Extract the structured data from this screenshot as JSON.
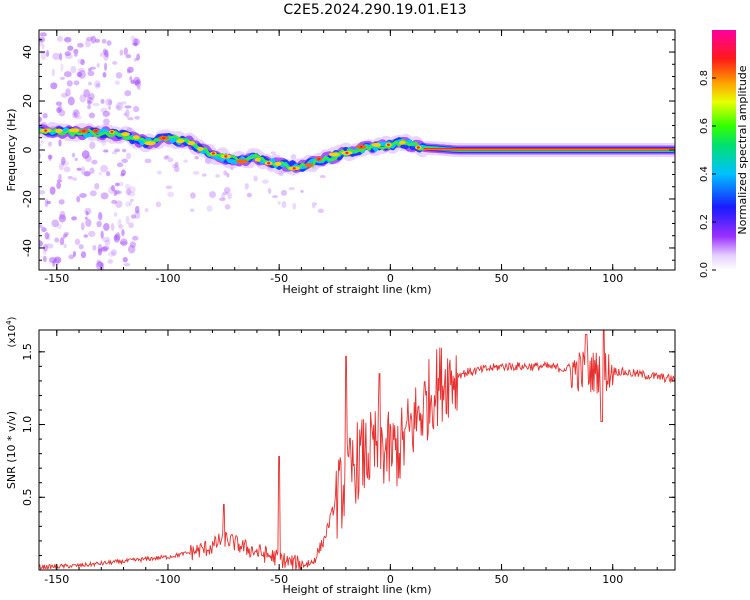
{
  "title": "C2E5.2024.290.19.01.E13",
  "chart_data": [
    {
      "type": "heatmap",
      "title": "C2E5.2024.290.19.01.E13",
      "xlabel": "Height of straight line (km)",
      "ylabel": "Frequency (Hz)",
      "xlim": [
        -158,
        128
      ],
      "ylim": [
        -49,
        49
      ],
      "x_ticks": [
        -150,
        -100,
        -50,
        0,
        50,
        100
      ],
      "y_ticks": [
        -40,
        -20,
        0,
        20,
        40
      ],
      "colorbar": {
        "label": "Normalized spectral amplitude",
        "range": [
          0,
          1
        ],
        "ticks": [
          "0.0",
          "0.2",
          "0.4",
          "0.6",
          "0.8"
        ],
        "colormap": "rainbow (white-violet-blue-cyan-green-yellow-orange-red-magenta)"
      },
      "dominant_frequency_track": {
        "x": [
          -155,
          -140,
          -130,
          -120,
          -110,
          -100,
          -90,
          -80,
          -70,
          -60,
          -50,
          -40,
          -30,
          -20,
          -10,
          0,
          5,
          15,
          30,
          60,
          90,
          125
        ],
        "y": [
          8,
          7,
          7,
          6,
          3,
          5,
          3,
          -2,
          -4,
          -3,
          -6,
          -7,
          -4,
          -1,
          1,
          2,
          3,
          1,
          0,
          0,
          0,
          0
        ]
      }
    },
    {
      "type": "line",
      "xlabel": "Height of straight line (km)",
      "ylabel": "SNR (10 * v/v)",
      "y_multiplier": "(x10^4)",
      "xlim": [
        -158,
        128
      ],
      "ylim": [
        0,
        1.65
      ],
      "x_ticks": [
        -150,
        -100,
        -50,
        0,
        50,
        100
      ],
      "y_ticks": [
        0.5,
        1.0,
        1.5
      ],
      "line_color": "#e8302e",
      "trend": {
        "x": [
          -158,
          -140,
          -120,
          -100,
          -90,
          -80,
          -75,
          -65,
          -55,
          -50,
          -45,
          -40,
          -35,
          -30,
          -25,
          -20,
          -15,
          -10,
          -5,
          0,
          5,
          10,
          15,
          20,
          25,
          35,
          50,
          70,
          80,
          90,
          100,
          110,
          128
        ],
        "y": [
          0.02,
          0.03,
          0.06,
          0.09,
          0.12,
          0.16,
          0.22,
          0.15,
          0.1,
          0.08,
          0.05,
          0.04,
          0.05,
          0.2,
          0.45,
          0.6,
          0.75,
          0.8,
          0.85,
          0.8,
          0.85,
          1.0,
          1.12,
          1.25,
          1.32,
          1.36,
          1.4,
          1.4,
          1.38,
          1.36,
          1.37,
          1.35,
          1.31
        ]
      },
      "spikes": [
        {
          "x": -75,
          "y": 0.45
        },
        {
          "x": -50,
          "y": 0.78
        },
        {
          "x": -20,
          "y": 1.47
        },
        {
          "x": -5,
          "y": 1.35
        },
        {
          "x": 88,
          "y": 1.62
        },
        {
          "x": 96,
          "y": 1.65
        },
        {
          "x": 95,
          "y": 1.02
        }
      ]
    }
  ]
}
